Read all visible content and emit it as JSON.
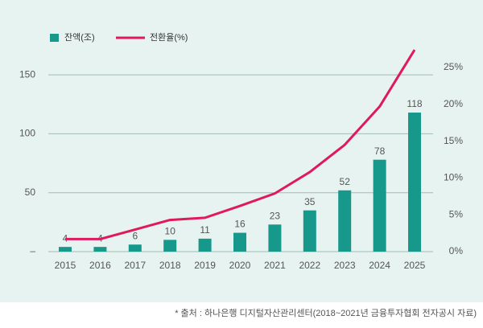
{
  "chart_data": {
    "type": "bar",
    "categories": [
      "2015",
      "2016",
      "2017",
      "2018",
      "2019",
      "2020",
      "2021",
      "2022",
      "2023",
      "2024",
      "2025"
    ],
    "series": [
      {
        "name": "잔액(조)",
        "color": "#16998b",
        "values": [
          4,
          4,
          6,
          10,
          11,
          16,
          23,
          35,
          52,
          78,
          118
        ]
      },
      {
        "name": "전환율(%)",
        "color": "#e0195a",
        "type": "line",
        "axis": "y2",
        "values": [
          1.7,
          1.7,
          3.0,
          4.3,
          4.6,
          6.2,
          7.9,
          10.8,
          14.5,
          19.7,
          27.4
        ]
      }
    ],
    "ylim": [
      0,
      175
    ],
    "yticks": [
      {
        "value": 0,
        "label": "–"
      },
      50,
      100,
      150
    ],
    "y2lim": [
      0,
      28
    ],
    "y2ticks": [
      {
        "value": 0,
        "label": "0%"
      },
      {
        "value": 5,
        "label": "5%"
      },
      {
        "value": 10,
        "label": "10%"
      },
      {
        "value": 15,
        "label": "15%"
      },
      {
        "value": 20,
        "label": "20%"
      },
      {
        "value": 25,
        "label": "25%"
      }
    ],
    "grid": true,
    "legend": "top-left",
    "source": "* 출처 : 하나은행 디지털자산관리센터(2018~2021년 금융투자협회 전자공시 자료)"
  }
}
